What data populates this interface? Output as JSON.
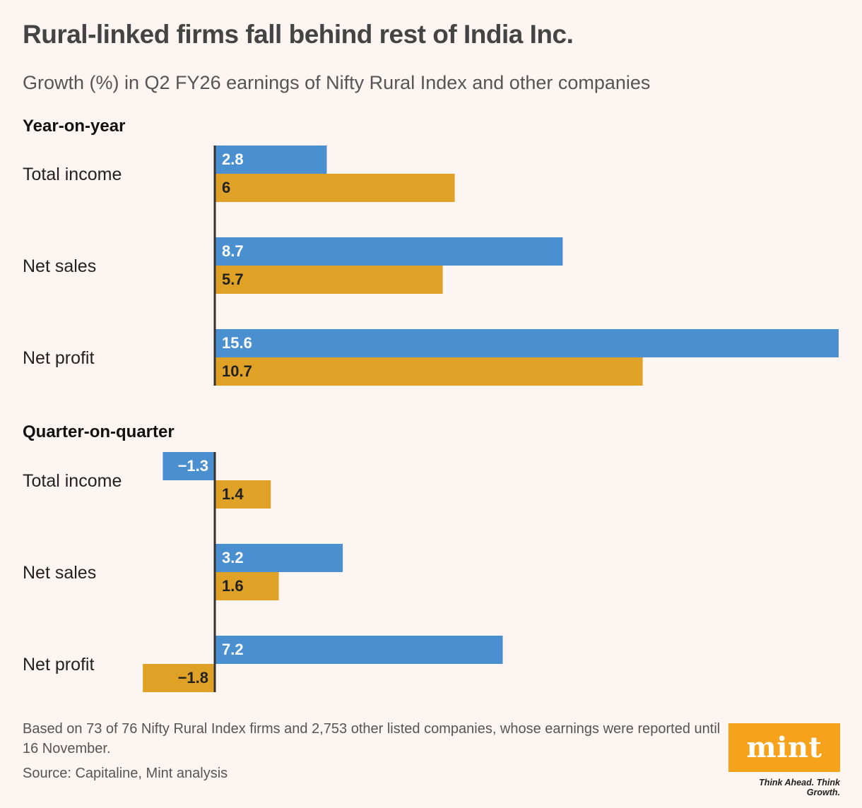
{
  "title": "Rural-linked firms fall behind rest of India Inc.",
  "subtitle": "Growth (%) in Q2 FY26 earnings of Nifty Rural Index and other companies",
  "footnote": "Based on 73 of 76 Nifty Rural Index firms and 2,753 other listed companies, whose earnings were reported until 16 November.",
  "source": "Source: Capitaline, Mint analysis",
  "logo": {
    "text": "mint",
    "tagline": "Think Ahead. Think Growth."
  },
  "colors": {
    "series_1": "#4a90d0",
    "series_2": "#e0a127",
    "axis": "#333333"
  },
  "chart_data": [
    {
      "type": "bar",
      "orientation": "horizontal",
      "title": "Year-on-year",
      "categories": [
        "Total income",
        "Net sales",
        "Net profit"
      ],
      "series": [
        {
          "values": [
            2.8,
            8.7,
            15.6
          ]
        },
        {
          "values": [
            6,
            5.7,
            10.7
          ]
        }
      ],
      "data_labels": [
        [
          "2.8",
          "8.7",
          "15.6"
        ],
        [
          "6",
          "5.7",
          "10.7"
        ]
      ]
    },
    {
      "type": "bar",
      "orientation": "horizontal",
      "title": "Quarter-on-quarter",
      "categories": [
        "Total income",
        "Net sales",
        "Net profit"
      ],
      "series": [
        {
          "values": [
            -1.3,
            3.2,
            7.2
          ]
        },
        {
          "values": [
            1.4,
            1.6,
            -1.8
          ]
        }
      ],
      "data_labels": [
        [
          "−1.3",
          "3.2",
          "7.2"
        ],
        [
          "1.4",
          "1.6",
          "−1.8"
        ]
      ]
    }
  ]
}
